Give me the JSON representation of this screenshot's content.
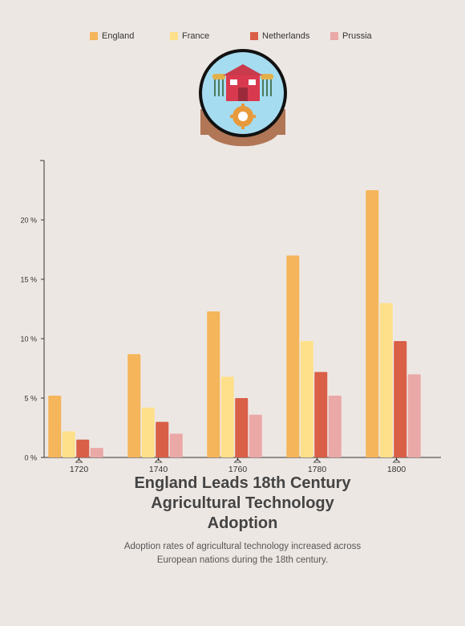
{
  "legend": [
    {
      "label": "England",
      "color": "#f5b55a"
    },
    {
      "label": "France",
      "color": "#ffe08a"
    },
    {
      "label": "Netherlands",
      "color": "#d95f47"
    },
    {
      "label": "Prussia",
      "color": "#eaa8a6"
    }
  ],
  "badge": {
    "icon": "farm-barn-icon"
  },
  "chart_data": {
    "type": "bar",
    "title": "England Leads 18th Century Agricultural Technology Adoption",
    "subtitle": "Adoption rates of agricultural technology increased across European nations during the 18th century.",
    "categories": [
      "1720",
      "1740",
      "1760",
      "1780",
      "1800"
    ],
    "series": [
      {
        "name": "England",
        "color": "#f5b55a",
        "values": [
          5.2,
          8.7,
          12.3,
          17.0,
          22.5
        ]
      },
      {
        "name": "France",
        "color": "#ffe08a",
        "values": [
          2.2,
          4.2,
          6.8,
          9.8,
          13.0
        ]
      },
      {
        "name": "Netherlands",
        "color": "#d95f47",
        "values": [
          1.5,
          3.0,
          5.0,
          7.2,
          9.8
        ]
      },
      {
        "name": "Prussia",
        "color": "#eaa8a6",
        "values": [
          0.8,
          2.0,
          3.6,
          5.2,
          7.0
        ]
      }
    ],
    "ylim": [
      0,
      25
    ],
    "yticks": [
      0,
      5,
      10,
      15,
      20
    ],
    "ytick_labels": [
      "0 %",
      "5 %",
      "10 %",
      "15 %",
      "20 %"
    ],
    "xlabel": "",
    "ylabel": "",
    "legend_position": "top",
    "grid": false
  },
  "title_lines": [
    "England Leads 18th Century",
    "Agricultural Technology",
    "Adoption"
  ],
  "subtitle_lines": [
    "Adoption rates of agricultural technology increased across",
    "European nations during the 18th century."
  ]
}
